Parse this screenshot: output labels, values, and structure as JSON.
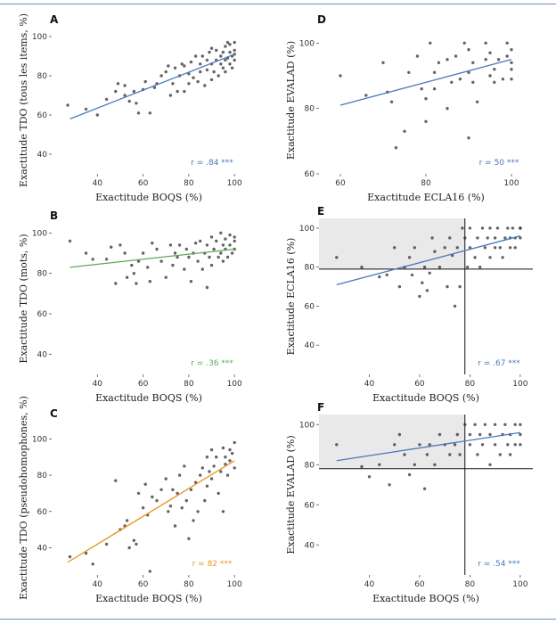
{
  "chart_data": [
    {
      "panel": "A",
      "type": "scatter",
      "xlabel": "Exactitude BOQS (%)",
      "ylabel": "Exactitude TDO (tous les items, %)",
      "xlim": [
        20,
        105
      ],
      "ylim": [
        30,
        105
      ],
      "xticks": [
        40,
        60,
        80,
        100
      ],
      "yticks": [
        40,
        60,
        80,
        100
      ],
      "annotation": "r = .84 ***",
      "line_color": "#4a7ab8",
      "fit": [
        [
          28,
          58
        ],
        [
          100,
          91
        ]
      ],
      "x": [
        27,
        35,
        40,
        44,
        48,
        49,
        52,
        52,
        54,
        56,
        57,
        58,
        60,
        61,
        63,
        65,
        66,
        68,
        70,
        71,
        72,
        73,
        74,
        75,
        76,
        77,
        78,
        78,
        80,
        80,
        81,
        82,
        83,
        84,
        85,
        85,
        86,
        87,
        88,
        88,
        89,
        90,
        90,
        90,
        91,
        92,
        92,
        93,
        94,
        94,
        95,
        95,
        96,
        96,
        96,
        97,
        97,
        98,
        98,
        98,
        99,
        99,
        100,
        100,
        100,
        100
      ],
      "y": [
        65,
        63,
        60,
        68,
        72,
        76,
        70,
        75,
        67,
        72,
        66,
        61,
        73,
        77,
        61,
        74,
        76,
        80,
        82,
        85,
        70,
        76,
        84,
        72,
        80,
        86,
        72,
        85,
        76,
        81,
        87,
        79,
        90,
        77,
        82,
        86,
        90,
        75,
        83,
        88,
        92,
        78,
        86,
        94,
        82,
        88,
        93,
        80,
        86,
        90,
        84,
        92,
        88,
        95,
        82,
        89,
        97,
        86,
        92,
        96,
        84,
        90,
        88,
        93,
        97,
        91
      ]
    },
    {
      "panel": "D",
      "type": "scatter",
      "xlabel": "Exactitude ECLA16 (%)",
      "ylabel": "Exactitude EVALAD (%)",
      "xlim": [
        55,
        105
      ],
      "ylim": [
        60,
        105
      ],
      "xticks": [
        60,
        80,
        100
      ],
      "yticks": [
        60,
        80,
        100
      ],
      "annotation": "r = 50 ***",
      "line_color": "#4a7ab8",
      "fit": [
        [
          60,
          81
        ],
        [
          100,
          95
        ]
      ],
      "x": [
        60,
        66,
        70,
        71,
        72,
        73,
        75,
        76,
        78,
        79,
        80,
        80,
        81,
        82,
        82,
        83,
        85,
        85,
        86,
        87,
        88,
        89,
        90,
        90,
        90,
        91,
        91,
        92,
        94,
        94,
        95,
        95,
        96,
        96,
        97,
        98,
        99,
        99,
        100,
        100,
        100,
        100
      ],
      "y": [
        90,
        84,
        94,
        85,
        82,
        68,
        73,
        91,
        96,
        86,
        76,
        83,
        100,
        91,
        86,
        94,
        80,
        95,
        88,
        96,
        89,
        100,
        91,
        98,
        71,
        88,
        94,
        82,
        95,
        100,
        90,
        97,
        92,
        88,
        95,
        89,
        100,
        96,
        92,
        98,
        89,
        94
      ]
    },
    {
      "panel": "B",
      "type": "scatter",
      "xlabel": "Exactitude BOQS (%)",
      "ylabel": "Exactitude TDO (mots, %)",
      "xlim": [
        20,
        105
      ],
      "ylim": [
        30,
        105
      ],
      "xticks": [
        40,
        60,
        80,
        100
      ],
      "yticks": [
        40,
        60,
        80,
        100
      ],
      "annotation": "r = .36 ***",
      "line_color": "#5aaa55",
      "fit": [
        [
          28,
          83
        ],
        [
          100,
          92
        ]
      ],
      "x": [
        28,
        35,
        38,
        44,
        46,
        48,
        50,
        52,
        53,
        55,
        56,
        57,
        58,
        60,
        62,
        63,
        64,
        66,
        68,
        70,
        72,
        73,
        74,
        75,
        76,
        78,
        79,
        80,
        81,
        82,
        83,
        84,
        85,
        86,
        87,
        88,
        88,
        89,
        90,
        90,
        91,
        92,
        93,
        94,
        94,
        95,
        95,
        96,
        96,
        97,
        98,
        98,
        99,
        100,
        100,
        100
      ],
      "y": [
        96,
        90,
        87,
        87,
        93,
        75,
        94,
        90,
        78,
        84,
        80,
        75,
        86,
        90,
        83,
        76,
        95,
        92,
        86,
        78,
        94,
        84,
        90,
        88,
        94,
        82,
        92,
        88,
        76,
        90,
        95,
        86,
        96,
        82,
        90,
        73,
        94,
        88,
        98,
        84,
        92,
        96,
        88,
        100,
        90,
        94,
        86,
        97,
        92,
        88,
        99,
        94,
        90,
        96,
        92,
        98
      ]
    },
    {
      "panel": "E",
      "type": "scatter",
      "xlabel": "Exactitude BOQS (%)",
      "ylabel": "Exactitude ECLA16 (%)",
      "xlim": [
        20,
        105
      ],
      "ylim": [
        25,
        105
      ],
      "xticks": [
        40,
        60,
        80,
        100
      ],
      "yticks": [
        40,
        60,
        80,
        100
      ],
      "annotation": "r = .67 ***",
      "line_color": "#4a7ab8",
      "fit": [
        [
          27,
          71
        ],
        [
          100,
          96
        ]
      ],
      "x": [
        27,
        37,
        44,
        47,
        50,
        52,
        54,
        56,
        57,
        58,
        60,
        61,
        62,
        63,
        64,
        65,
        66,
        68,
        70,
        71,
        72,
        73,
        74,
        75,
        76,
        77,
        78,
        79,
        80,
        80,
        82,
        83,
        84,
        85,
        86,
        87,
        88,
        88,
        90,
        90,
        91,
        92,
        93,
        94,
        95,
        96,
        96,
        97,
        98,
        98,
        100,
        100,
        100
      ],
      "y": [
        85,
        80,
        75,
        76,
        90,
        70,
        80,
        85,
        76,
        90,
        65,
        72,
        80,
        68,
        77,
        95,
        88,
        80,
        90,
        70,
        95,
        86,
        60,
        90,
        70,
        100,
        95,
        80,
        90,
        100,
        85,
        95,
        80,
        100,
        90,
        95,
        85,
        100,
        90,
        95,
        100,
        90,
        85,
        95,
        100,
        90,
        95,
        100,
        95,
        90,
        100,
        95,
        100
      ],
      "ref_x": 78,
      "ref_y": 79
    },
    {
      "panel": "C",
      "type": "scatter",
      "xlabel": "Exactitude BOQS (%)",
      "ylabel": "Exactitude TDO (pseudohomophones, %)",
      "xlim": [
        20,
        105
      ],
      "ylim": [
        25,
        110
      ],
      "xticks": [
        40,
        60,
        80,
        100
      ],
      "yticks": [
        40,
        60,
        80,
        100
      ],
      "annotation": "r = 82 ***",
      "line_color": "#e8941e",
      "fit": [
        [
          27,
          32
        ],
        [
          100,
          88
        ]
      ],
      "x": [
        28,
        35,
        38,
        44,
        48,
        50,
        52,
        53,
        54,
        56,
        57,
        58,
        60,
        61,
        62,
        63,
        64,
        66,
        68,
        70,
        71,
        72,
        73,
        74,
        75,
        76,
        77,
        78,
        79,
        80,
        81,
        82,
        83,
        84,
        85,
        86,
        87,
        88,
        88,
        89,
        90,
        90,
        91,
        92,
        93,
        94,
        95,
        95,
        96,
        96,
        97,
        98,
        98,
        99,
        100,
        100
      ],
      "y": [
        35,
        37,
        31,
        42,
        77,
        50,
        52,
        55,
        40,
        44,
        42,
        70,
        62,
        75,
        58,
        27,
        68,
        66,
        72,
        78,
        60,
        63,
        72,
        52,
        70,
        80,
        62,
        85,
        66,
        45,
        72,
        55,
        76,
        60,
        80,
        84,
        66,
        90,
        74,
        82,
        94,
        78,
        85,
        90,
        70,
        82,
        60,
        95,
        86,
        90,
        80,
        94,
        88,
        92,
        84,
        98
      ]
    },
    {
      "panel": "F",
      "type": "scatter",
      "xlabel": "Exactitude BOQS (%)",
      "ylabel": "Exactitude EVALAD (%)",
      "xlim": [
        20,
        105
      ],
      "ylim": [
        25,
        105
      ],
      "xticks": [
        40,
        60,
        80,
        100
      ],
      "yticks": [
        40,
        60,
        80,
        100
      ],
      "annotation": "r = .54 ***",
      "line_color": "#4a7ab8",
      "fit": [
        [
          27,
          82
        ],
        [
          100,
          96
        ]
      ],
      "x": [
        27,
        37,
        40,
        44,
        48,
        50,
        52,
        54,
        56,
        58,
        60,
        62,
        63,
        64,
        66,
        68,
        70,
        72,
        74,
        75,
        76,
        78,
        80,
        80,
        82,
        83,
        84,
        85,
        86,
        88,
        88,
        90,
        90,
        92,
        93,
        94,
        95,
        96,
        96,
        98,
        98,
        100,
        100,
        100
      ],
      "y": [
        90,
        79,
        74,
        80,
        70,
        90,
        95,
        85,
        75,
        80,
        90,
        68,
        85,
        90,
        80,
        95,
        90,
        85,
        90,
        95,
        85,
        100,
        90,
        95,
        100,
        85,
        95,
        90,
        100,
        80,
        95,
        90,
        100,
        85,
        95,
        100,
        90,
        95,
        85,
        100,
        90,
        95,
        100,
        90
      ],
      "ref_x": 78,
      "ref_y": 78
    }
  ]
}
